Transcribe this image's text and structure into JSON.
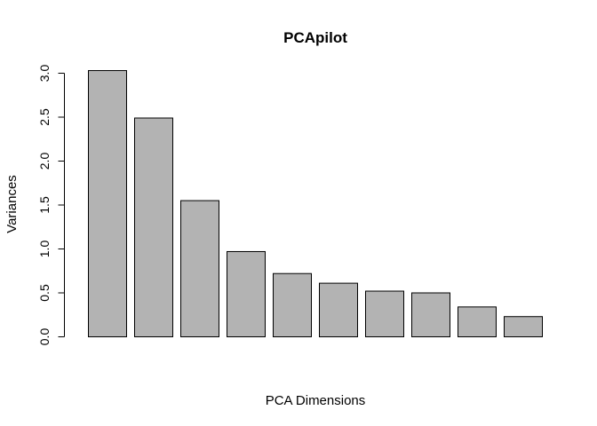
{
  "chart_data": {
    "type": "bar",
    "title": "PCApilot",
    "xlabel": "PCA Dimensions",
    "ylabel": "Variances",
    "categories": [
      "",
      "",
      "",
      "",
      "",
      "",
      "",
      "",
      "",
      ""
    ],
    "values": [
      3.03,
      2.49,
      1.55,
      0.97,
      0.72,
      0.61,
      0.52,
      0.5,
      0.34,
      0.23
    ],
    "ylim": [
      0,
      3.0
    ],
    "yticks": [
      0.0,
      0.5,
      1.0,
      1.5,
      2.0,
      2.5,
      3.0
    ],
    "ytick_labels": [
      "0.0",
      "0.5",
      "1.0",
      "1.5",
      "2.0",
      "2.5",
      "3.0"
    ],
    "bar_fill": "#b3b3b3",
    "bar_stroke": "#000000",
    "grid": false,
    "legend": "none"
  }
}
